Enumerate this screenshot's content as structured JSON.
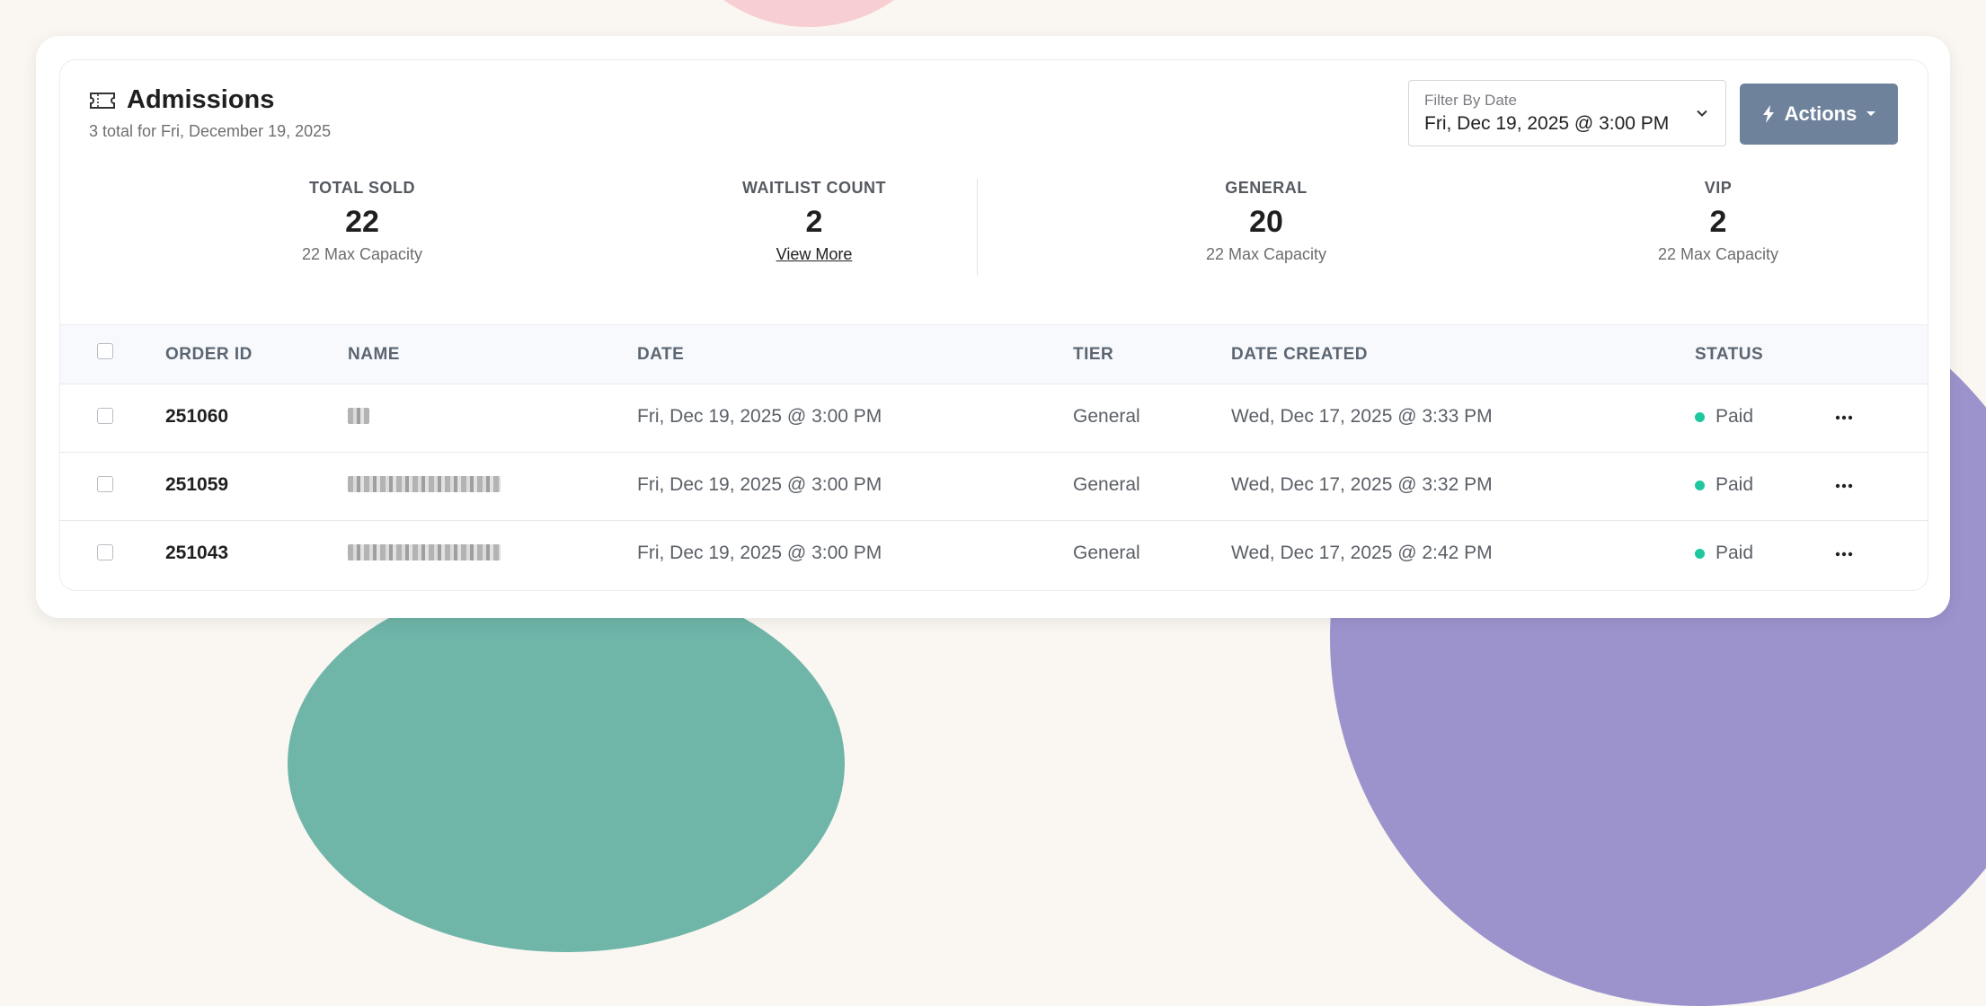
{
  "header": {
    "title": "Admissions",
    "subtitle": "3 total for Fri, December 19, 2025"
  },
  "filter": {
    "label": "Filter By Date",
    "value": "Fri, Dec 19, 2025 @ 3:00 PM"
  },
  "actions": {
    "label": "Actions"
  },
  "stats": {
    "total_sold": {
      "label": "TOTAL SOLD",
      "value": "22",
      "sub": "22 Max Capacity"
    },
    "waitlist": {
      "label": "WAITLIST COUNT",
      "value": "2",
      "link": "View More"
    },
    "general": {
      "label": "GENERAL",
      "value": "20",
      "sub": "22 Max Capacity"
    },
    "vip": {
      "label": "VIP",
      "value": "2",
      "sub": "22 Max Capacity"
    }
  },
  "table": {
    "columns": [
      "ORDER ID",
      "NAME",
      "DATE",
      "TIER",
      "DATE CREATED",
      "STATUS"
    ],
    "rows": [
      {
        "order_id": "251060",
        "date": "Fri, Dec 19, 2025 @ 3:00 PM",
        "tier": "General",
        "created": "Wed, Dec 17, 2025 @ 3:33 PM",
        "status": "Paid"
      },
      {
        "order_id": "251059",
        "date": "Fri, Dec 19, 2025 @ 3:00 PM",
        "tier": "General",
        "created": "Wed, Dec 17, 2025 @ 3:32 PM",
        "status": "Paid"
      },
      {
        "order_id": "251043",
        "date": "Fri, Dec 19, 2025 @ 3:00 PM",
        "tier": "General",
        "created": "Wed, Dec 17, 2025 @ 2:42 PM",
        "status": "Paid"
      }
    ]
  },
  "colors": {
    "accent": "#6e829b",
    "status_paid": "#1ec79f",
    "background": "#faf6f1"
  }
}
